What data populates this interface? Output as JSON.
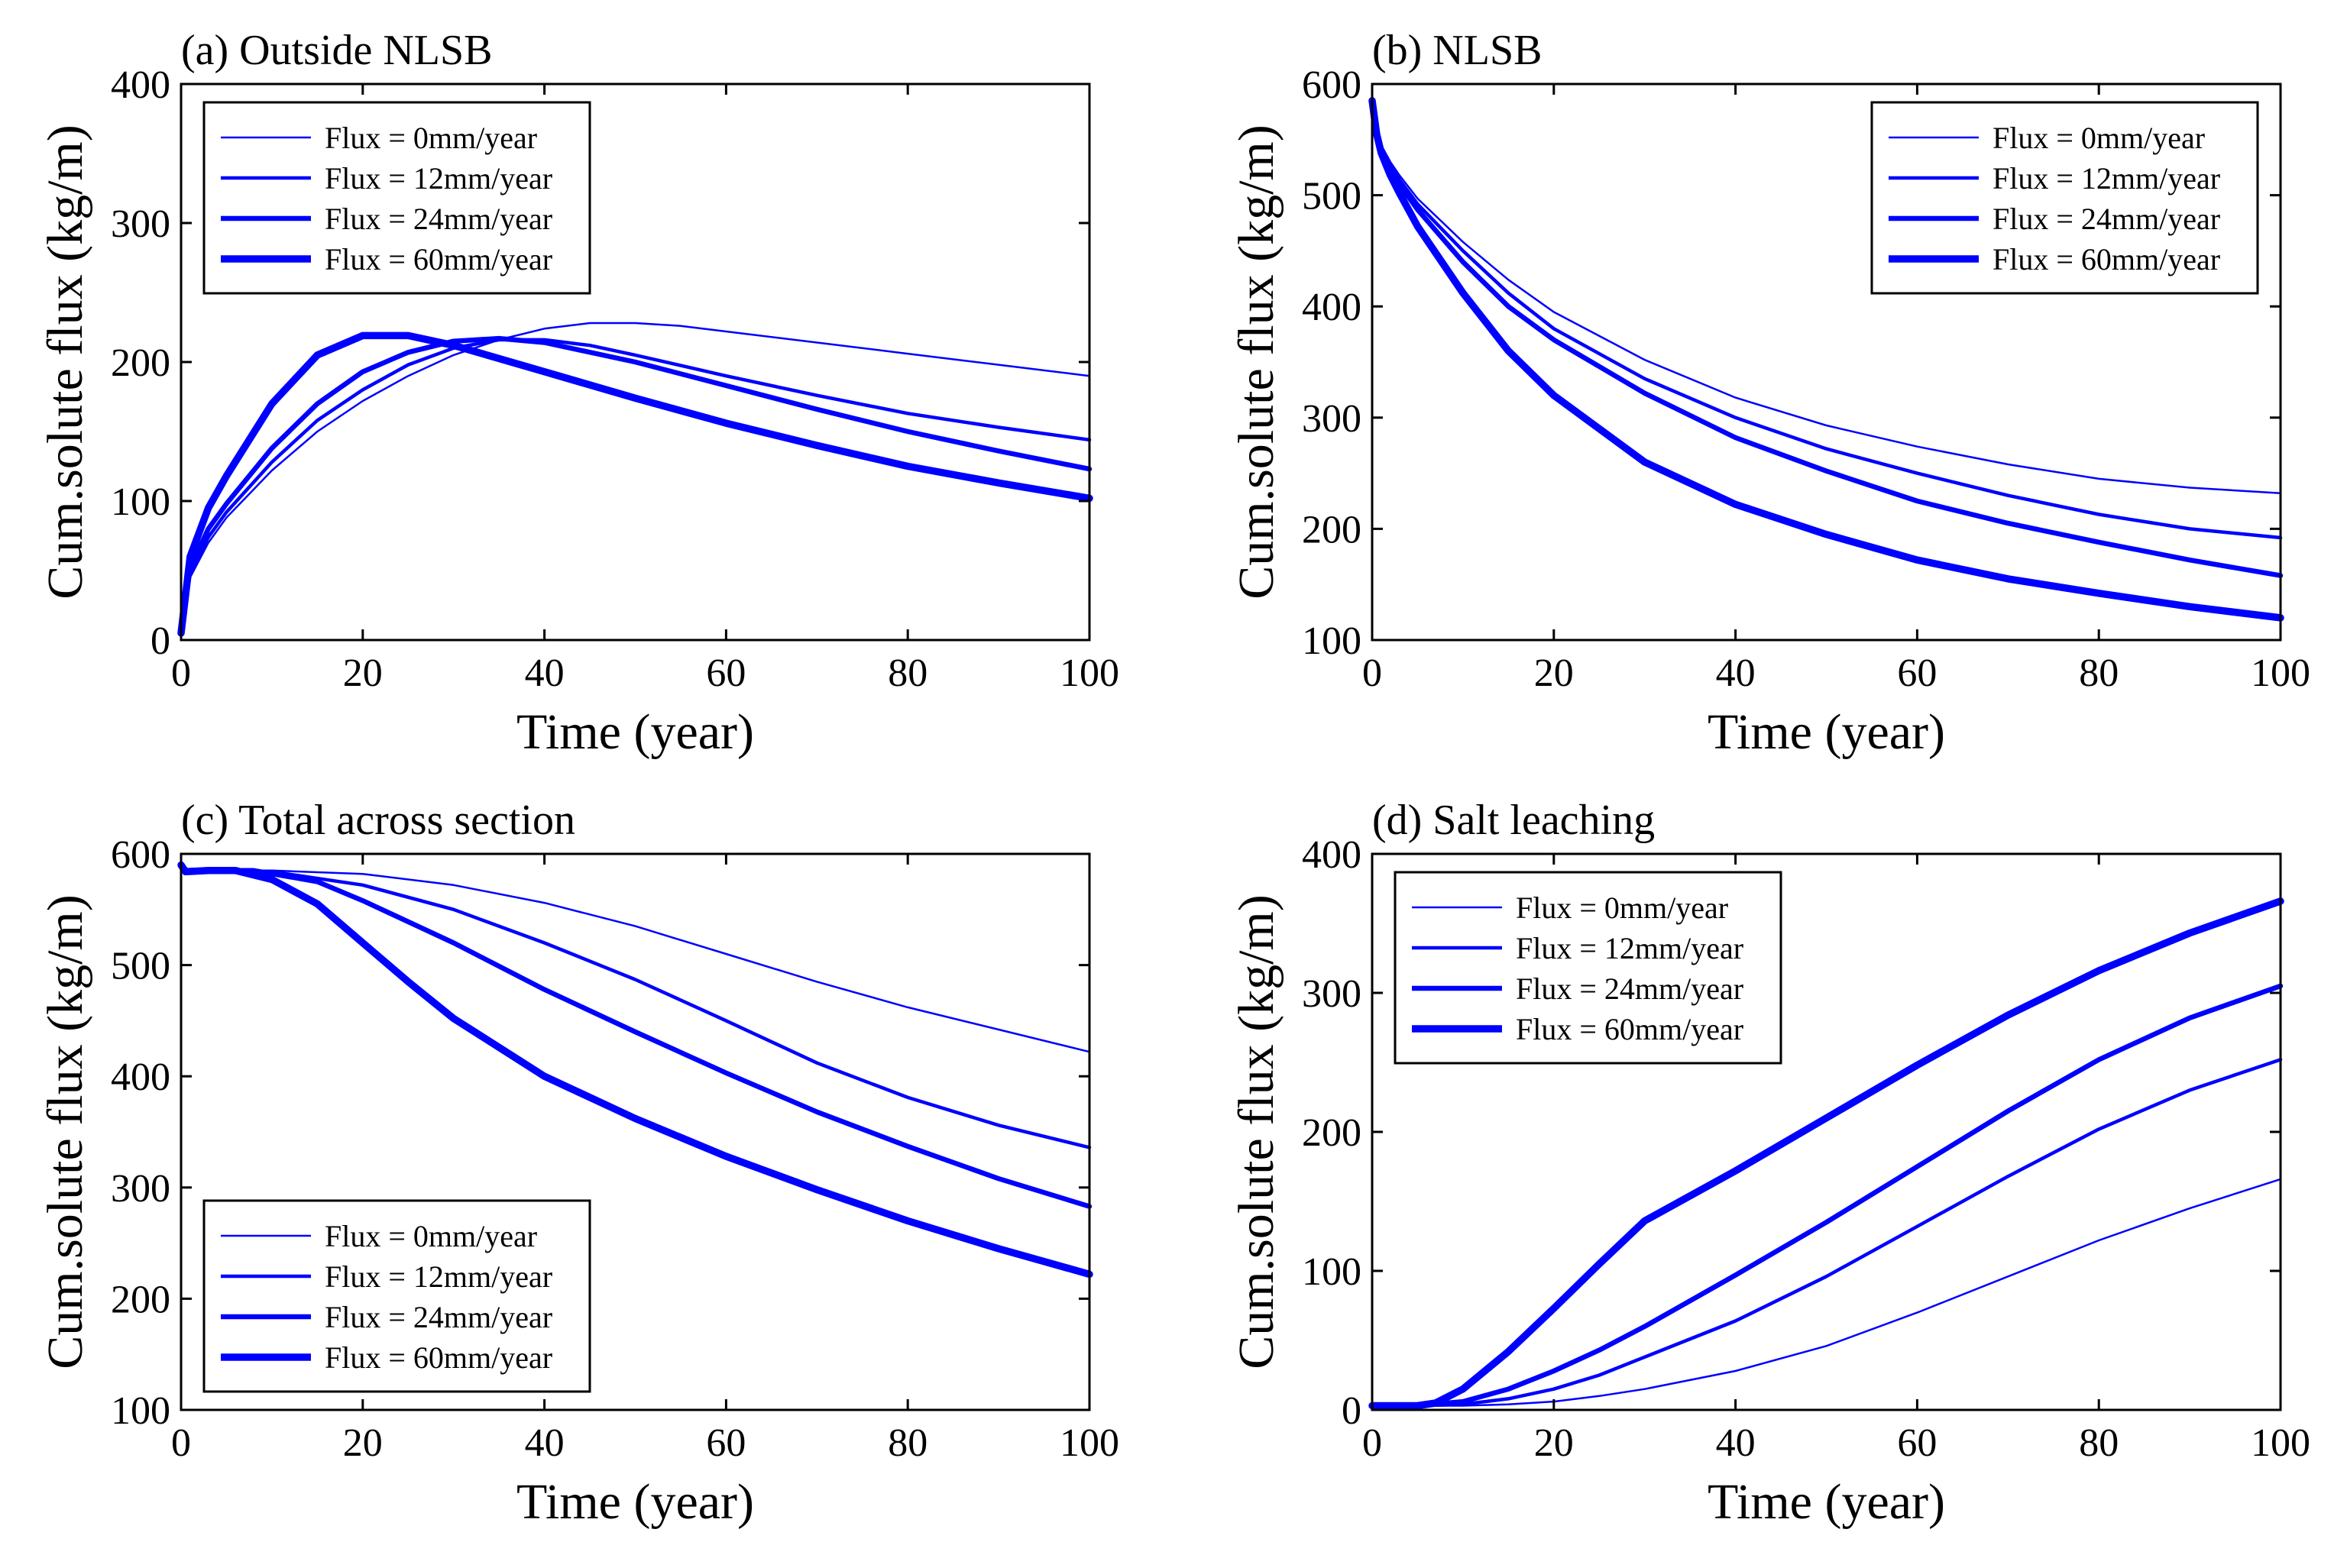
{
  "colors": {
    "series": "#0000ff",
    "axis": "#000000",
    "background": "#ffffff"
  },
  "chart_data": [
    {
      "type": "line",
      "title": "(a) Outside NLSB",
      "xlabel": "Time (year)",
      "ylabel": "Cum.solute flux (kg/m)",
      "xlim": [
        0,
        100
      ],
      "ylim": [
        0,
        400
      ],
      "xticks": [
        0,
        20,
        40,
        60,
        80,
        100
      ],
      "yticks": [
        0,
        100,
        200,
        300,
        400
      ],
      "xtick_labels": [
        "0",
        "20",
        "40",
        "60",
        "80",
        "100"
      ],
      "ytick_labels": [
        "0",
        "100",
        "200",
        "300",
        "400"
      ],
      "legend_position": "top-left",
      "series": [
        {
          "name": "Flux = 0mm/year",
          "weight": 1,
          "x": [
            0,
            1,
            3,
            5,
            10,
            15,
            20,
            25,
            30,
            35,
            40,
            45,
            50,
            55,
            60,
            70,
            80,
            90,
            100
          ],
          "y": [
            5,
            45,
            70,
            88,
            122,
            150,
            172,
            190,
            205,
            216,
            224,
            228,
            228,
            226,
            222,
            214,
            206,
            198,
            190
          ]
        },
        {
          "name": "Flux = 12mm/year",
          "weight": 2,
          "x": [
            0,
            1,
            3,
            5,
            10,
            15,
            20,
            25,
            30,
            35,
            40,
            45,
            50,
            60,
            70,
            80,
            90,
            100
          ],
          "y": [
            5,
            48,
            74,
            92,
            128,
            158,
            180,
            198,
            210,
            216,
            216,
            212,
            205,
            190,
            176,
            163,
            153,
            144
          ]
        },
        {
          "name": "Flux = 24mm/year",
          "weight": 3,
          "x": [
            0,
            1,
            3,
            5,
            10,
            15,
            20,
            25,
            30,
            35,
            40,
            50,
            60,
            70,
            80,
            90,
            100
          ],
          "y": [
            5,
            52,
            80,
            98,
            138,
            170,
            193,
            207,
            215,
            217,
            214,
            200,
            183,
            166,
            150,
            136,
            123
          ]
        },
        {
          "name": "Flux = 60mm/year",
          "weight": 4,
          "x": [
            0,
            1,
            3,
            5,
            10,
            15,
            20,
            25,
            30,
            40,
            50,
            60,
            70,
            80,
            90,
            100
          ],
          "y": [
            5,
            60,
            95,
            118,
            170,
            205,
            219,
            219,
            212,
            193,
            174,
            156,
            140,
            125,
            113,
            102
          ]
        }
      ]
    },
    {
      "type": "line",
      "title": "(b) NLSB",
      "xlabel": "Time (year)",
      "ylabel": "Cum.solute flux (kg/m)",
      "xlim": [
        0,
        100
      ],
      "ylim": [
        100,
        600
      ],
      "xticks": [
        0,
        20,
        40,
        60,
        80,
        100
      ],
      "yticks": [
        100,
        200,
        300,
        400,
        500,
        600
      ],
      "xtick_labels": [
        "0",
        "20",
        "40",
        "60",
        "80",
        "100"
      ],
      "ytick_labels": [
        "100",
        "200",
        "300",
        "400",
        "500",
        "600"
      ],
      "legend_position": "top-right",
      "series": [
        {
          "name": "Flux = 0mm/year",
          "weight": 1,
          "x": [
            0,
            0.5,
            1,
            2,
            3,
            5,
            10,
            15,
            20,
            30,
            40,
            50,
            60,
            70,
            80,
            90,
            100
          ],
          "y": [
            585,
            560,
            545,
            530,
            518,
            497,
            458,
            424,
            395,
            352,
            318,
            293,
            274,
            258,
            245,
            237,
            232
          ]
        },
        {
          "name": "Flux = 12mm/year",
          "weight": 2,
          "x": [
            0,
            0.5,
            1,
            2,
            3,
            5,
            10,
            15,
            20,
            30,
            40,
            50,
            60,
            70,
            80,
            90,
            100
          ],
          "y": [
            585,
            558,
            543,
            527,
            514,
            492,
            450,
            412,
            380,
            335,
            300,
            272,
            250,
            230,
            213,
            200,
            192
          ]
        },
        {
          "name": "Flux = 24mm/year",
          "weight": 3,
          "x": [
            0,
            0.5,
            1,
            2,
            3,
            5,
            10,
            15,
            20,
            30,
            40,
            50,
            60,
            70,
            80,
            90,
            100
          ],
          "y": [
            585,
            557,
            541,
            524,
            510,
            487,
            440,
            400,
            370,
            322,
            282,
            252,
            225,
            205,
            188,
            172,
            158
          ]
        },
        {
          "name": "Flux = 60mm/year",
          "weight": 4,
          "x": [
            0,
            0.5,
            1,
            2,
            3,
            5,
            10,
            15,
            20,
            30,
            40,
            50,
            60,
            70,
            80,
            90,
            100
          ],
          "y": [
            585,
            555,
            538,
            518,
            502,
            472,
            412,
            360,
            320,
            260,
            222,
            195,
            172,
            155,
            142,
            130,
            120
          ]
        }
      ]
    },
    {
      "type": "line",
      "title": "(c) Total across section",
      "xlabel": "Time (year)",
      "ylabel": "Cum.solute flux (kg/m)",
      "xlim": [
        0,
        100
      ],
      "ylim": [
        100,
        600
      ],
      "xticks": [
        0,
        20,
        40,
        60,
        80,
        100
      ],
      "yticks": [
        100,
        200,
        300,
        400,
        500,
        600
      ],
      "xtick_labels": [
        "0",
        "20",
        "40",
        "60",
        "80",
        "100"
      ],
      "ytick_labels": [
        "100",
        "200",
        "300",
        "400",
        "500",
        "600"
      ],
      "legend_position": "bottom-left",
      "series": [
        {
          "name": "Flux = 0mm/year",
          "weight": 1,
          "x": [
            0,
            0.5,
            3,
            10,
            20,
            30,
            40,
            50,
            60,
            70,
            80,
            90,
            100
          ],
          "y": [
            590,
            584,
            585,
            585,
            582,
            572,
            556,
            535,
            510,
            485,
            462,
            442,
            422
          ]
        },
        {
          "name": "Flux = 12mm/year",
          "weight": 2,
          "x": [
            0,
            0.5,
            3,
            10,
            20,
            30,
            40,
            50,
            60,
            70,
            80,
            90,
            100
          ],
          "y": [
            590,
            584,
            585,
            584,
            572,
            550,
            520,
            487,
            450,
            412,
            381,
            356,
            336
          ]
        },
        {
          "name": "Flux = 24mm/year",
          "weight": 3,
          "x": [
            0,
            0.5,
            3,
            8,
            15,
            20,
            30,
            40,
            50,
            60,
            70,
            80,
            90,
            100
          ],
          "y": [
            590,
            584,
            585,
            585,
            575,
            558,
            520,
            478,
            440,
            403,
            368,
            337,
            308,
            283
          ]
        },
        {
          "name": "Flux = 60mm/year",
          "weight": 4,
          "x": [
            0,
            0.5,
            3,
            6,
            10,
            15,
            20,
            25,
            30,
            40,
            50,
            60,
            70,
            80,
            90,
            100
          ],
          "y": [
            590,
            584,
            585,
            585,
            577,
            555,
            520,
            485,
            452,
            400,
            362,
            328,
            298,
            270,
            245,
            222
          ]
        }
      ]
    },
    {
      "type": "line",
      "title": "(d) Salt leaching",
      "xlabel": "Time (year)",
      "ylabel": "Cum.solute flux (kg/m)",
      "xlim": [
        0,
        100
      ],
      "ylim": [
        0,
        400
      ],
      "xticks": [
        0,
        20,
        40,
        60,
        80,
        100
      ],
      "yticks": [
        0,
        100,
        200,
        300,
        400
      ],
      "xtick_labels": [
        "0",
        "20",
        "40",
        "60",
        "80",
        "100"
      ],
      "ytick_labels": [
        "0",
        "100",
        "200",
        "300",
        "400"
      ],
      "legend_position": "top-left",
      "series": [
        {
          "name": "Flux = 0mm/year",
          "weight": 1,
          "x": [
            0,
            5,
            10,
            15,
            20,
            25,
            30,
            40,
            50,
            60,
            70,
            80,
            90,
            100
          ],
          "y": [
            3,
            3,
            3,
            4,
            6,
            10,
            15,
            28,
            46,
            70,
            96,
            122,
            145,
            166
          ]
        },
        {
          "name": "Flux = 12mm/year",
          "weight": 2,
          "x": [
            0,
            5,
            10,
            15,
            20,
            25,
            30,
            40,
            50,
            60,
            70,
            80,
            90,
            100
          ],
          "y": [
            3,
            3,
            4,
            8,
            15,
            25,
            38,
            64,
            96,
            132,
            168,
            202,
            230,
            252
          ]
        },
        {
          "name": "Flux = 24mm/year",
          "weight": 3,
          "x": [
            0,
            5,
            10,
            15,
            20,
            25,
            30,
            40,
            50,
            60,
            70,
            80,
            90,
            100
          ],
          "y": [
            3,
            3,
            6,
            15,
            28,
            43,
            60,
            97,
            135,
            175,
            215,
            252,
            282,
            305
          ]
        },
        {
          "name": "Flux = 60mm/year",
          "weight": 4,
          "x": [
            0,
            5,
            7,
            10,
            15,
            20,
            25,
            30,
            40,
            50,
            60,
            70,
            80,
            90,
            100
          ],
          "y": [
            3,
            3,
            5,
            15,
            42,
            73,
            105,
            136,
            172,
            210,
            248,
            284,
            316,
            343,
            366
          ]
        }
      ]
    }
  ]
}
